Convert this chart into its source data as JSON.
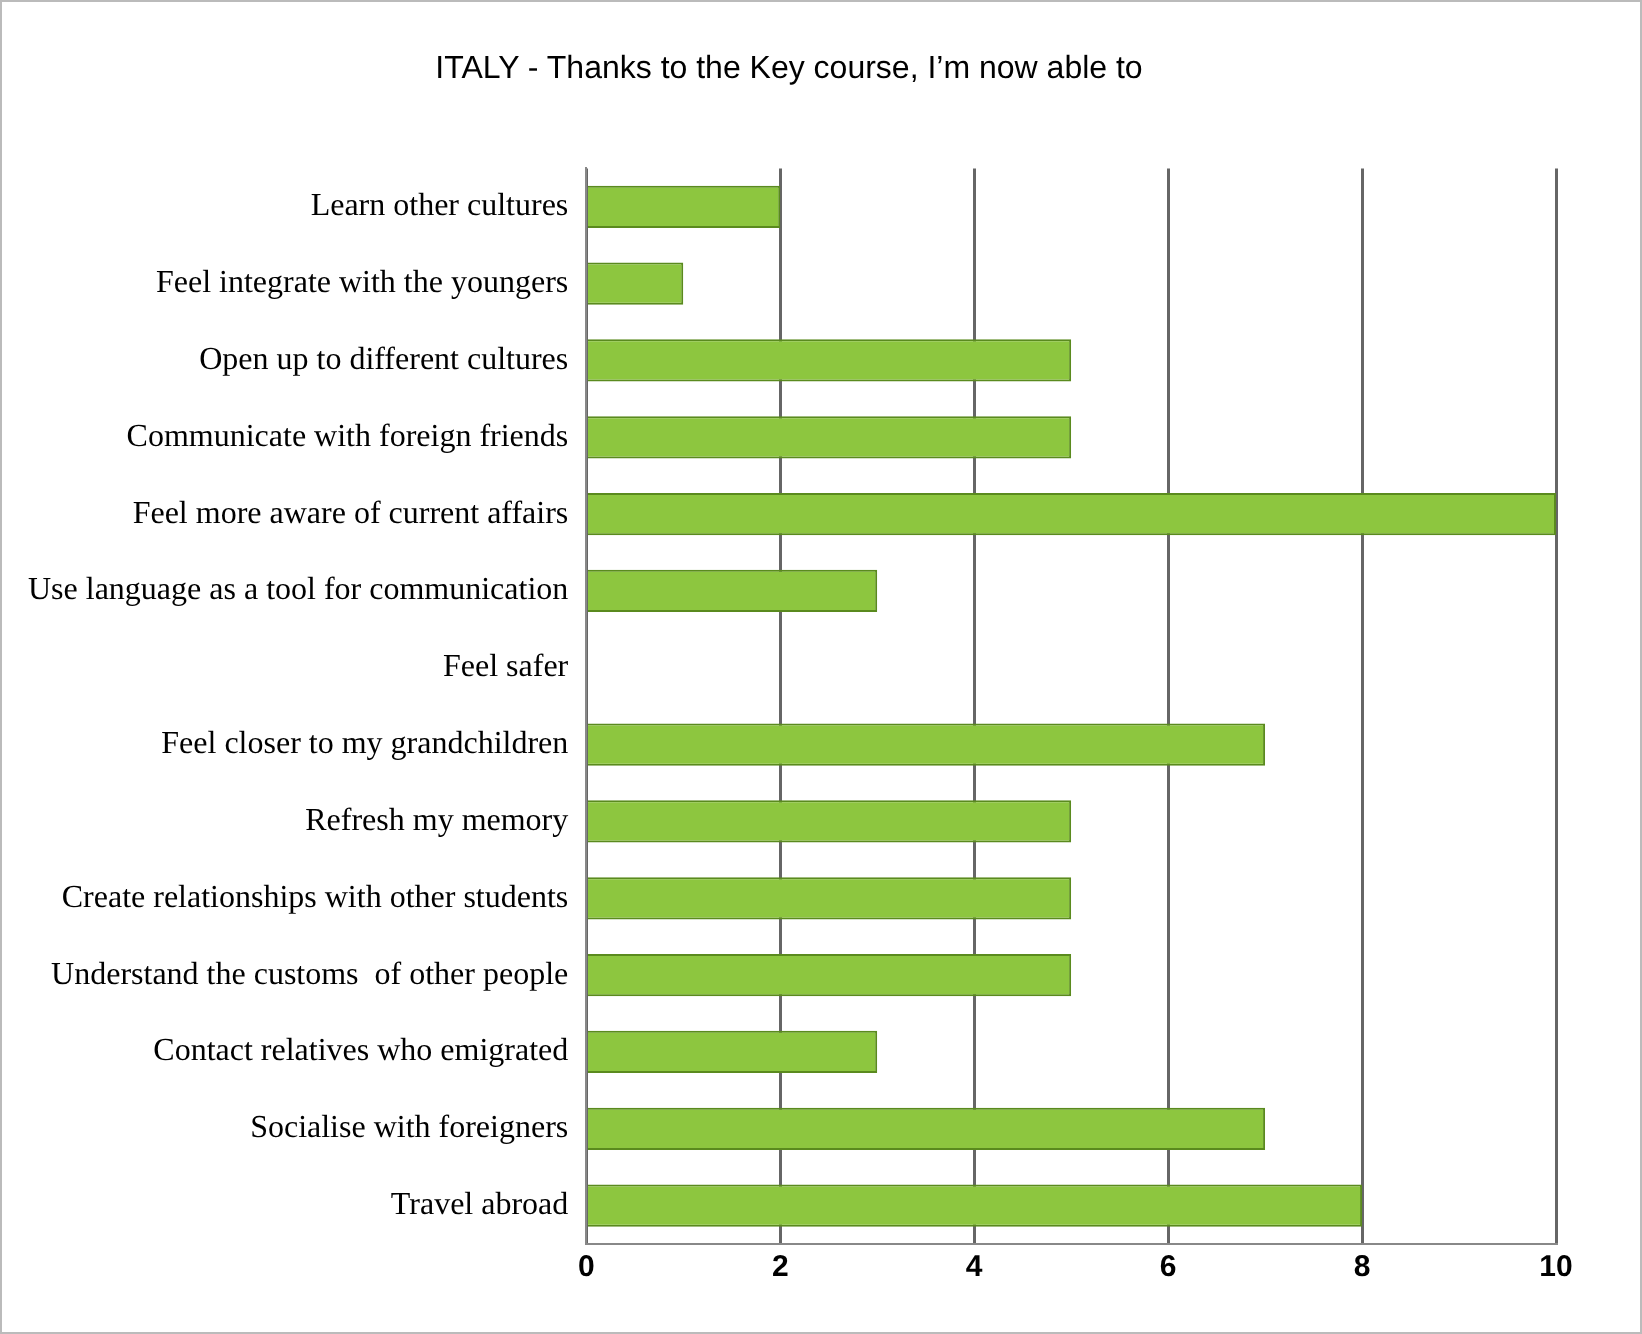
{
  "chart_data": {
    "type": "bar",
    "orientation": "horizontal",
    "title": "ITALY - Thanks to the Key course, I’m now able to",
    "categories": [
      "Learn other cultures",
      "Feel integrate with the youngers",
      "Open up to different cultures",
      "Communicate with foreign friends",
      "Feel more aware of current affairs",
      "Use language as a tool for communication",
      "Feel safer",
      "Feel closer to my grandchildren",
      "Refresh my memory",
      "Create relationships with other students",
      "Understand the customs  of other people",
      "Contact relatives who emigrated",
      "Socialise with foreigners",
      "Travel abroad"
    ],
    "values": [
      2,
      1,
      5,
      5,
      10,
      3,
      0,
      7,
      5,
      5,
      5,
      3,
      7,
      8
    ],
    "color": "#8dc63f",
    "xlim": [
      0,
      10
    ],
    "xticks": [
      0,
      2,
      4,
      6,
      8,
      10
    ],
    "grid": "x",
    "legend": false
  }
}
